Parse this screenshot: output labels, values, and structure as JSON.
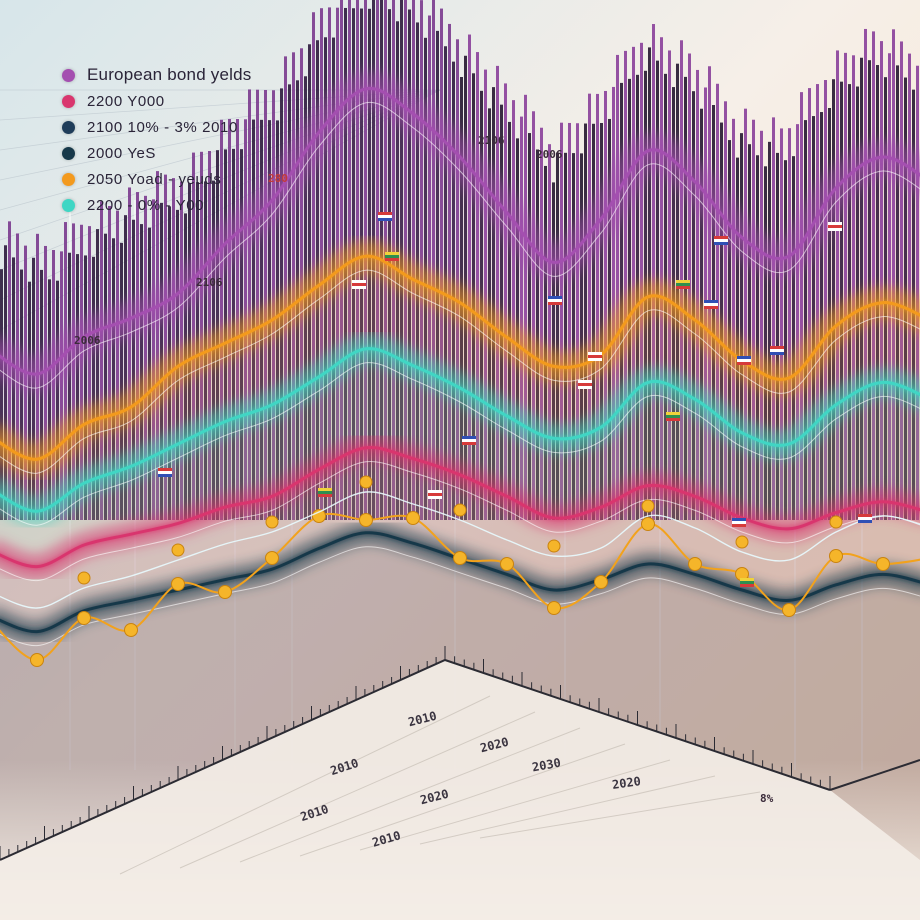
{
  "chart_data": {
    "type": "area",
    "title": "",
    "xlabel": "",
    "ylabel": "",
    "grid": true,
    "legend_placement": "top-left",
    "legend": [
      {
        "label": "European bond yelds",
        "color": "#a44fb0"
      },
      {
        "label": "2200 Y000",
        "color": "#d9366e"
      },
      {
        "label": "2100 10% - 3% 2010",
        "color": "#1f3d5a"
      },
      {
        "label": "2000 YeS",
        "color": "#17394a"
      },
      {
        "label": "2050 Yoad - yeuds",
        "color": "#f39a1e"
      },
      {
        "label": "2200 - 0% - Y00",
        "color": "#3fd6c4"
      }
    ],
    "annotations": [
      "280",
      "2106",
      "2106",
      "2006",
      "2006",
      "8%"
    ],
    "axis_tick_labels": [
      "2010",
      "2020",
      "2030",
      "2010",
      "2020",
      "2010",
      "2020",
      "2010"
    ],
    "x": [
      0,
      1,
      2,
      3,
      4,
      5,
      6,
      7,
      8,
      9,
      10,
      11,
      12,
      13,
      14,
      15,
      16,
      17,
      18,
      19,
      20
    ],
    "series": [
      {
        "name": "European bond yelds",
        "color": "#a44fb0",
        "values": [
          3.4,
          3.0,
          3.6,
          3.9,
          4.3,
          5.1,
          5.8,
          6.9,
          7.6,
          7.2,
          6.5,
          5.6,
          4.8,
          5.5,
          6.6,
          6.1,
          5.2,
          4.9,
          6.0,
          6.5,
          6.1
        ]
      },
      {
        "name": "2200 Y000",
        "color": "#d9366e",
        "values": [
          2.4,
          2.1,
          2.5,
          2.7,
          2.9,
          3.2,
          3.4,
          3.9,
          4.3,
          4.1,
          3.8,
          3.4,
          3.0,
          3.2,
          3.6,
          3.4,
          3.0,
          2.8,
          3.1,
          3.3,
          3.1
        ]
      },
      {
        "name": "2050 Yoad - yeuds",
        "color": "#f39a1e",
        "values": [
          3.0,
          2.6,
          3.2,
          3.5,
          4.2,
          4.6,
          5.0,
          5.6,
          6.1,
          5.7,
          5.3,
          4.7,
          4.2,
          4.4,
          5.4,
          5.0,
          4.3,
          4.0,
          4.9,
          5.3,
          5.0
        ]
      },
      {
        "name": "2200 - 0% - Y00",
        "color": "#3fd6c4",
        "values": [
          2.7,
          2.3,
          2.8,
          3.1,
          3.5,
          3.9,
          4.2,
          4.7,
          5.2,
          4.9,
          4.5,
          4.0,
          3.6,
          3.8,
          4.6,
          4.3,
          3.7,
          3.5,
          4.2,
          4.6,
          4.3
        ]
      },
      {
        "name": "2000 YeS",
        "color": "#17394a",
        "values": [
          2.0,
          1.7,
          2.1,
          2.3,
          2.5,
          2.7,
          2.9,
          3.3,
          3.6,
          3.4,
          3.1,
          2.8,
          2.5,
          2.7,
          3.0,
          2.8,
          2.5,
          2.3,
          2.6,
          2.8,
          2.6
        ]
      }
    ],
    "ylim": [
      0,
      8
    ]
  }
}
